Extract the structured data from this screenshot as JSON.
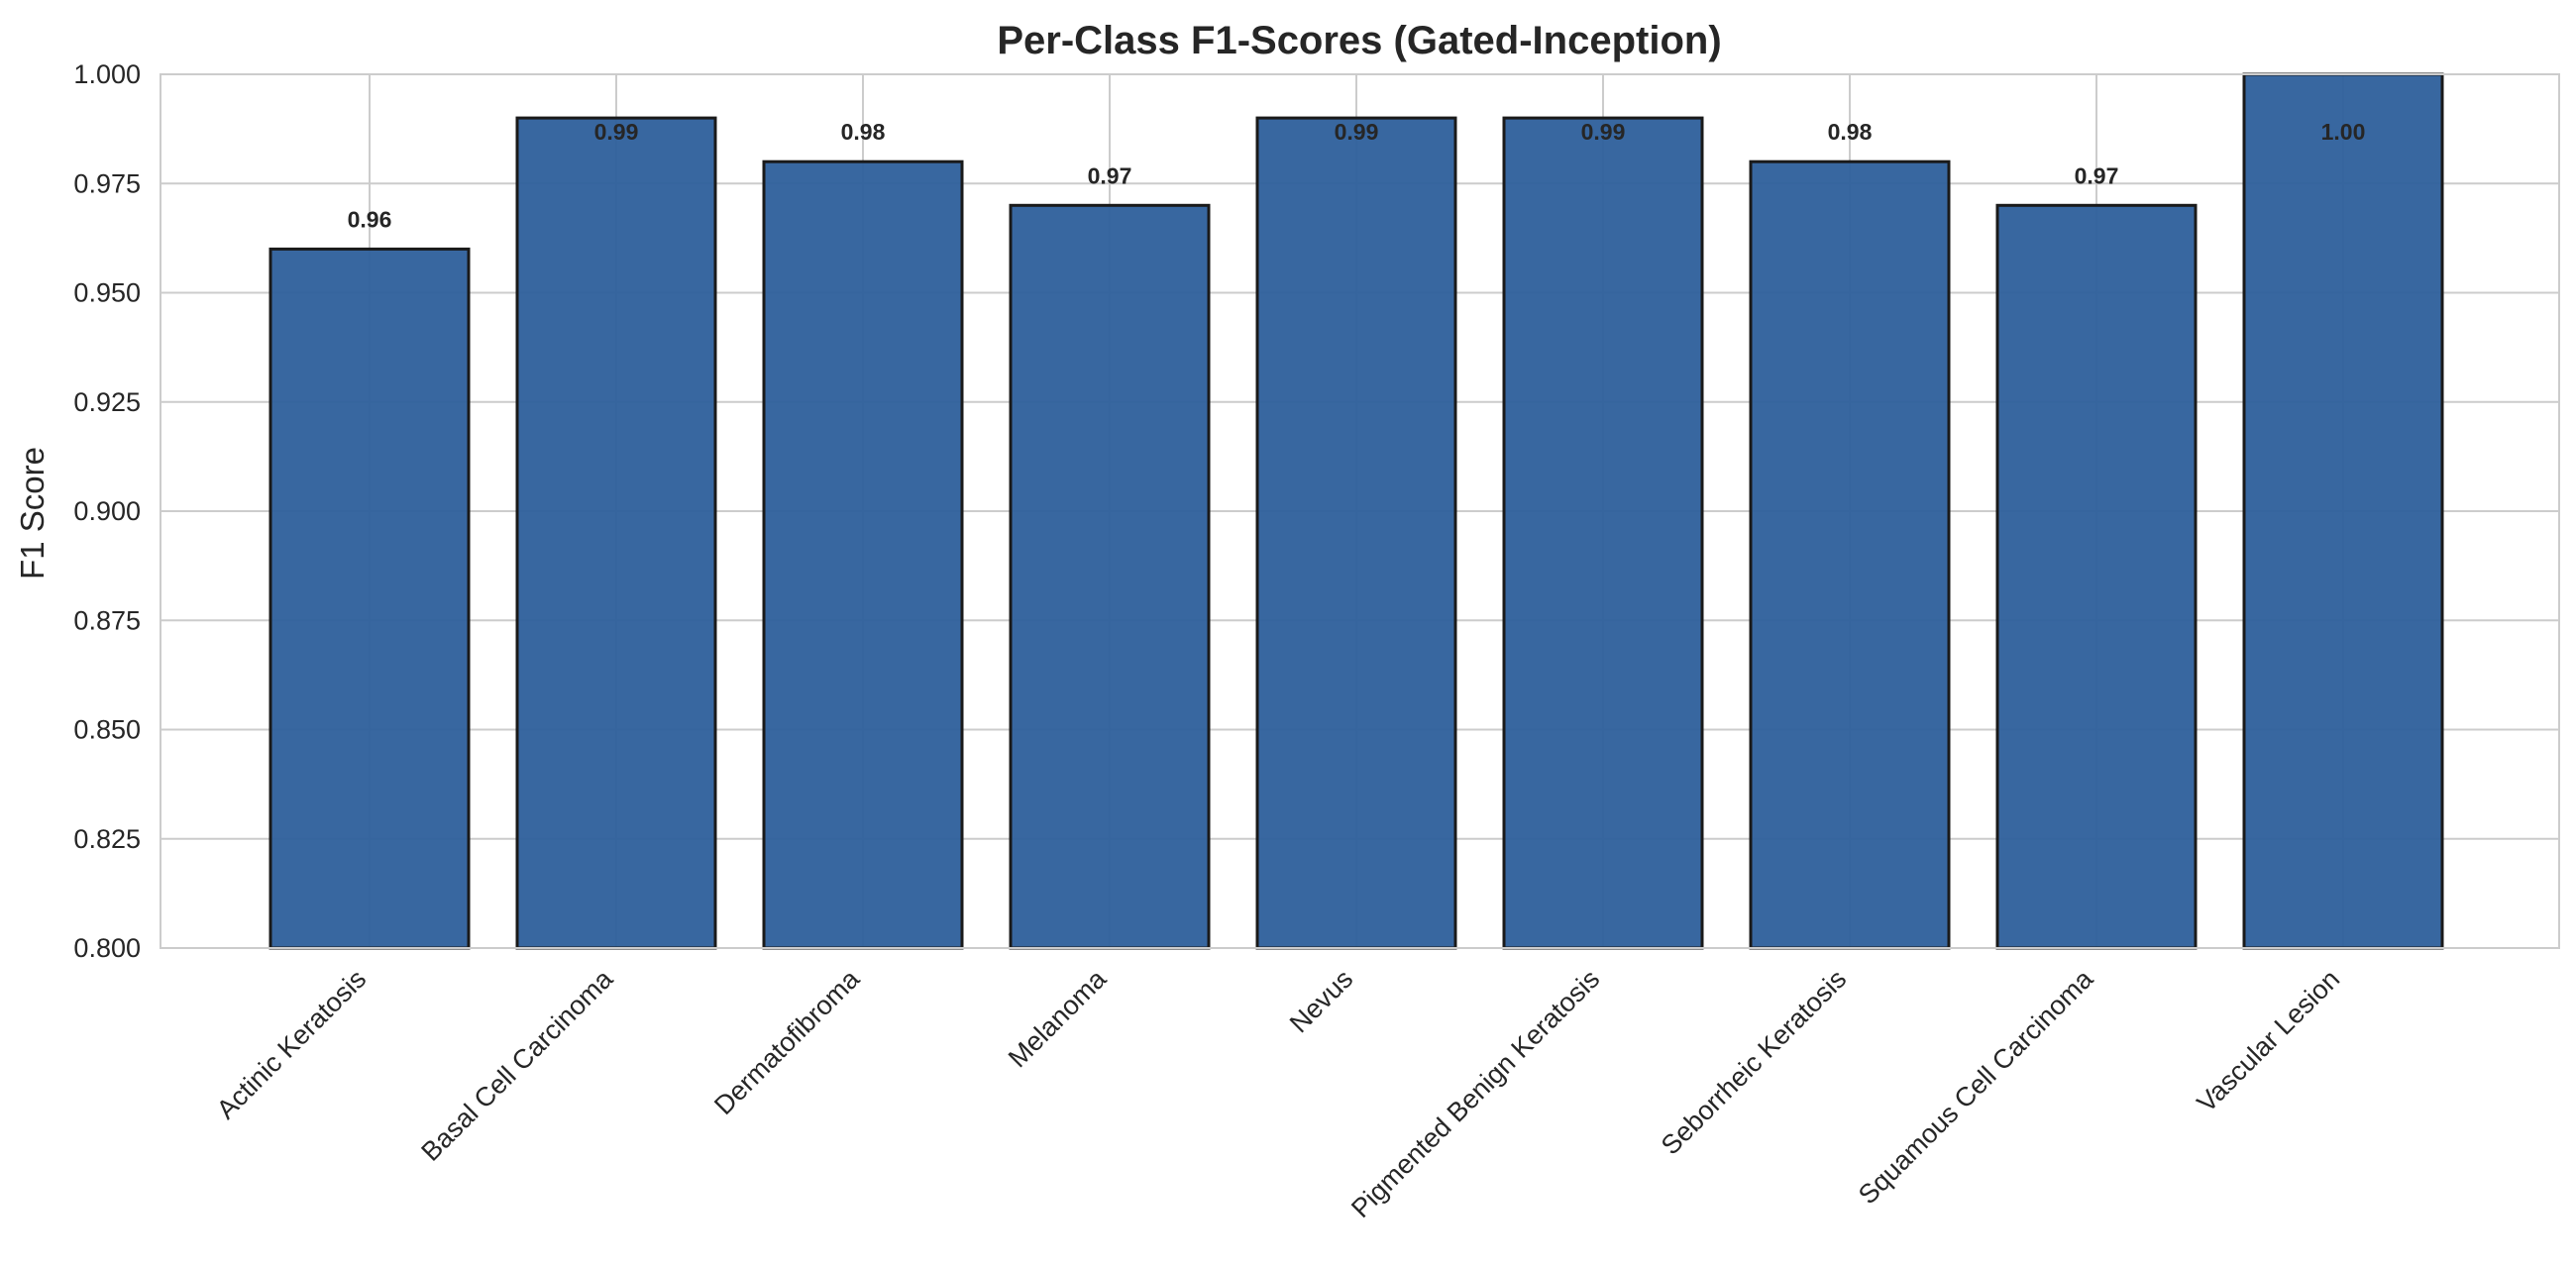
{
  "chart_data": {
    "type": "bar",
    "title": "Per-Class F1-Scores (Gated-Inception)",
    "xlabel": "",
    "ylabel": "F1 Score",
    "ylim": [
      0.8,
      1.0
    ],
    "yticks": [
      "0.800",
      "0.825",
      "0.850",
      "0.875",
      "0.900",
      "0.925",
      "0.950",
      "0.975",
      "1.000"
    ],
    "ytick_values": [
      0.8,
      0.825,
      0.85,
      0.875,
      0.9,
      0.925,
      0.95,
      0.975,
      1.0
    ],
    "grid": true,
    "bar_color": "#2d5f9b",
    "bar_edge_color": "#1a1a1a",
    "categories": [
      "Actinic Keratosis",
      "Basal Cell Carcinoma",
      "Dermatofibroma",
      "Melanoma",
      "Nevus",
      "Pigmented Benign Keratosis",
      "Seborrheic Keratosis",
      "Squamous Cell Carcinoma",
      "Vascular Lesion"
    ],
    "values": [
      0.96,
      0.99,
      0.98,
      0.97,
      0.99,
      0.99,
      0.98,
      0.97,
      1.0
    ],
    "value_labels": [
      "0.96",
      "0.99",
      "0.98",
      "0.97",
      "0.99",
      "0.99",
      "0.98",
      "0.97",
      "1.00"
    ]
  }
}
